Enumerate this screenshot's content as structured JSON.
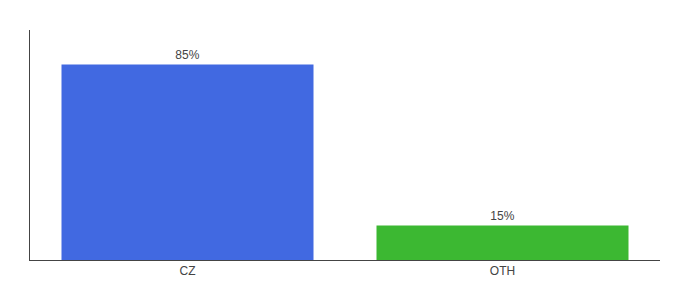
{
  "chart_data": {
    "type": "bar",
    "categories": [
      "CZ",
      "OTH"
    ],
    "values": [
      85,
      15
    ],
    "value_labels": [
      "85%",
      "15%"
    ],
    "colors": [
      "#4169e1",
      "#3cb832"
    ],
    "data_labels": true,
    "ylim": [
      0,
      100
    ],
    "grid": false,
    "tick_labels": "x"
  }
}
